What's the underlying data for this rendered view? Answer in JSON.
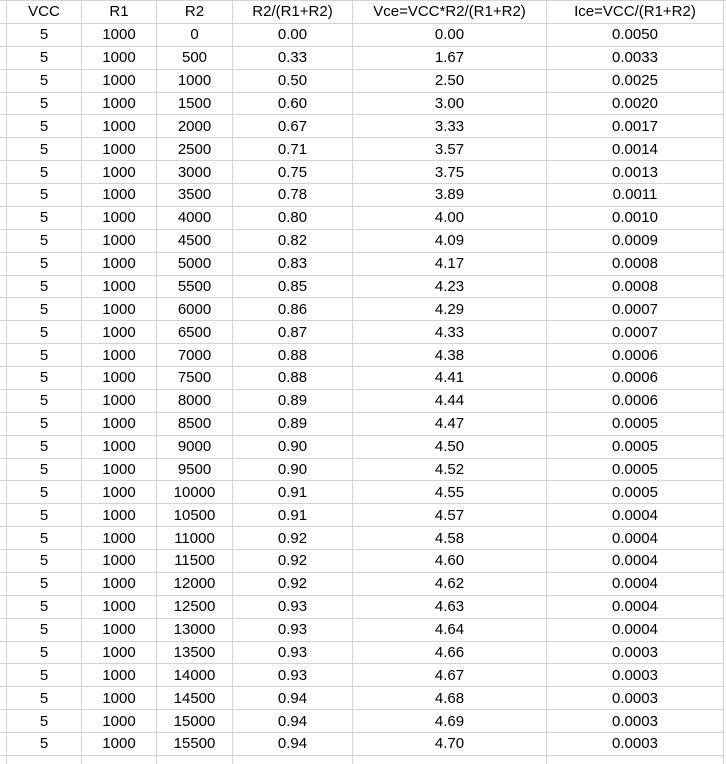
{
  "app": {
    "description": "spreadsheet-grid"
  },
  "colors": {
    "gridline": "#d4d4d4",
    "text": "#000000",
    "background": "#ffffff"
  },
  "table": {
    "headers": [
      "VCC",
      "R1",
      "R2",
      "R2/(R1+R2)",
      "Vce=VCC*R2/(R1+R2)",
      "Ice=VCC/(R1+R2)"
    ],
    "rows": [
      [
        "5",
        "1000",
        "0",
        "0.00",
        "0.00",
        "0.0050"
      ],
      [
        "5",
        "1000",
        "500",
        "0.33",
        "1.67",
        "0.0033"
      ],
      [
        "5",
        "1000",
        "1000",
        "0.50",
        "2.50",
        "0.0025"
      ],
      [
        "5",
        "1000",
        "1500",
        "0.60",
        "3.00",
        "0.0020"
      ],
      [
        "5",
        "1000",
        "2000",
        "0.67",
        "3.33",
        "0.0017"
      ],
      [
        "5",
        "1000",
        "2500",
        "0.71",
        "3.57",
        "0.0014"
      ],
      [
        "5",
        "1000",
        "3000",
        "0.75",
        "3.75",
        "0.0013"
      ],
      [
        "5",
        "1000",
        "3500",
        "0.78",
        "3.89",
        "0.0011"
      ],
      [
        "5",
        "1000",
        "4000",
        "0.80",
        "4.00",
        "0.0010"
      ],
      [
        "5",
        "1000",
        "4500",
        "0.82",
        "4.09",
        "0.0009"
      ],
      [
        "5",
        "1000",
        "5000",
        "0.83",
        "4.17",
        "0.0008"
      ],
      [
        "5",
        "1000",
        "5500",
        "0.85",
        "4.23",
        "0.0008"
      ],
      [
        "5",
        "1000",
        "6000",
        "0.86",
        "4.29",
        "0.0007"
      ],
      [
        "5",
        "1000",
        "6500",
        "0.87",
        "4.33",
        "0.0007"
      ],
      [
        "5",
        "1000",
        "7000",
        "0.88",
        "4.38",
        "0.0006"
      ],
      [
        "5",
        "1000",
        "7500",
        "0.88",
        "4.41",
        "0.0006"
      ],
      [
        "5",
        "1000",
        "8000",
        "0.89",
        "4.44",
        "0.0006"
      ],
      [
        "5",
        "1000",
        "8500",
        "0.89",
        "4.47",
        "0.0005"
      ],
      [
        "5",
        "1000",
        "9000",
        "0.90",
        "4.50",
        "0.0005"
      ],
      [
        "5",
        "1000",
        "9500",
        "0.90",
        "4.52",
        "0.0005"
      ],
      [
        "5",
        "1000",
        "10000",
        "0.91",
        "4.55",
        "0.0005"
      ],
      [
        "5",
        "1000",
        "10500",
        "0.91",
        "4.57",
        "0.0004"
      ],
      [
        "5",
        "1000",
        "11000",
        "0.92",
        "4.58",
        "0.0004"
      ],
      [
        "5",
        "1000",
        "11500",
        "0.92",
        "4.60",
        "0.0004"
      ],
      [
        "5",
        "1000",
        "12000",
        "0.92",
        "4.62",
        "0.0004"
      ],
      [
        "5",
        "1000",
        "12500",
        "0.93",
        "4.63",
        "0.0004"
      ],
      [
        "5",
        "1000",
        "13000",
        "0.93",
        "4.64",
        "0.0004"
      ],
      [
        "5",
        "1000",
        "13500",
        "0.93",
        "4.66",
        "0.0003"
      ],
      [
        "5",
        "1000",
        "14000",
        "0.93",
        "4.67",
        "0.0003"
      ],
      [
        "5",
        "1000",
        "14500",
        "0.94",
        "4.68",
        "0.0003"
      ],
      [
        "5",
        "1000",
        "15000",
        "0.94",
        "4.69",
        "0.0003"
      ],
      [
        "5",
        "1000",
        "15500",
        "0.94",
        "4.70",
        "0.0003"
      ]
    ]
  },
  "chart_data": {
    "type": "table",
    "title": "",
    "columns": [
      "VCC",
      "R1",
      "R2",
      "R2/(R1+R2)",
      "Vce=VCC*R2/(R1+R2)",
      "Ice=VCC/(R1+R2)"
    ],
    "vcc": 5,
    "r1": 1000,
    "r2_values": [
      0,
      500,
      1000,
      1500,
      2000,
      2500,
      3000,
      3500,
      4000,
      4500,
      5000,
      5500,
      6000,
      6500,
      7000,
      7500,
      8000,
      8500,
      9000,
      9500,
      10000,
      10500,
      11000,
      11500,
      12000,
      12500,
      13000,
      13500,
      14000,
      14500,
      15000,
      15500
    ],
    "ratio_values": [
      0.0,
      0.33,
      0.5,
      0.6,
      0.67,
      0.71,
      0.75,
      0.78,
      0.8,
      0.82,
      0.83,
      0.85,
      0.86,
      0.87,
      0.88,
      0.88,
      0.89,
      0.89,
      0.9,
      0.9,
      0.91,
      0.91,
      0.92,
      0.92,
      0.92,
      0.93,
      0.93,
      0.93,
      0.93,
      0.94,
      0.94,
      0.94
    ],
    "vce_values": [
      0.0,
      1.67,
      2.5,
      3.0,
      3.33,
      3.57,
      3.75,
      3.89,
      4.0,
      4.09,
      4.17,
      4.23,
      4.29,
      4.33,
      4.38,
      4.41,
      4.44,
      4.47,
      4.5,
      4.52,
      4.55,
      4.57,
      4.58,
      4.6,
      4.62,
      4.63,
      4.64,
      4.66,
      4.67,
      4.68,
      4.69,
      4.7
    ],
    "ice_values": [
      0.005,
      0.0033,
      0.0025,
      0.002,
      0.0017,
      0.0014,
      0.0013,
      0.0011,
      0.001,
      0.0009,
      0.0008,
      0.0008,
      0.0007,
      0.0007,
      0.0006,
      0.0006,
      0.0006,
      0.0005,
      0.0005,
      0.0005,
      0.0005,
      0.0004,
      0.0004,
      0.0004,
      0.0004,
      0.0004,
      0.0004,
      0.0003,
      0.0003,
      0.0003,
      0.0003,
      0.0003
    ]
  }
}
